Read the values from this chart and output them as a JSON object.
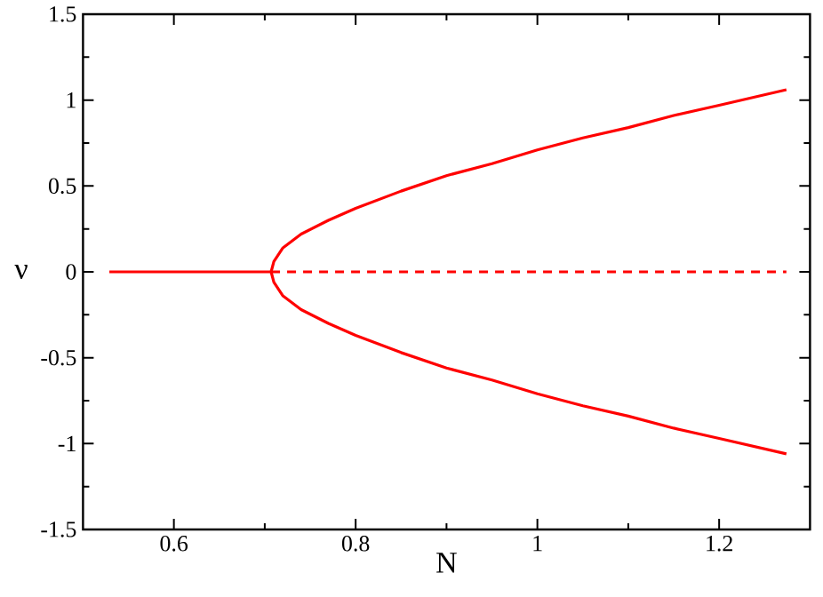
{
  "chart_data": {
    "type": "line",
    "xlabel": "N",
    "ylabel": "ν",
    "xlim": [
      0.5,
      1.3
    ],
    "ylim": [
      -1.5,
      1.5
    ],
    "xticks": [
      0.6,
      0.8,
      1,
      1.2
    ],
    "yticks": [
      -1.5,
      -1,
      -0.5,
      0,
      0.5,
      1,
      1.5
    ],
    "marker": "none",
    "series": [
      {
        "color": "#ff0000",
        "line_style": "solid",
        "x": [
          0.529,
          0.707
        ],
        "values": [
          0,
          0
        ]
      },
      {
        "color": "#ff0000",
        "line_style": "dashed",
        "x": [
          0.707,
          1.274
        ],
        "values": [
          0,
          0
        ]
      },
      {
        "color": "#ff0000",
        "line_style": "solid",
        "x": [
          0.707,
          0.71,
          0.72,
          0.74,
          0.77,
          0.8,
          0.85,
          0.9,
          0.95,
          1.0,
          1.05,
          1.1,
          1.15,
          1.2,
          1.274
        ],
        "values": [
          0,
          0.06,
          0.14,
          0.22,
          0.3,
          0.37,
          0.47,
          0.56,
          0.63,
          0.71,
          0.78,
          0.84,
          0.91,
          0.97,
          1.06
        ]
      },
      {
        "color": "#ff0000",
        "line_style": "solid",
        "x": [
          0.707,
          0.71,
          0.72,
          0.74,
          0.77,
          0.8,
          0.85,
          0.9,
          0.95,
          1.0,
          1.05,
          1.1,
          1.15,
          1.2,
          1.274
        ],
        "values": [
          0,
          -0.06,
          -0.14,
          -0.22,
          -0.3,
          -0.37,
          -0.47,
          -0.56,
          -0.63,
          -0.71,
          -0.78,
          -0.84,
          -0.91,
          -0.97,
          -1.06
        ]
      }
    ]
  }
}
